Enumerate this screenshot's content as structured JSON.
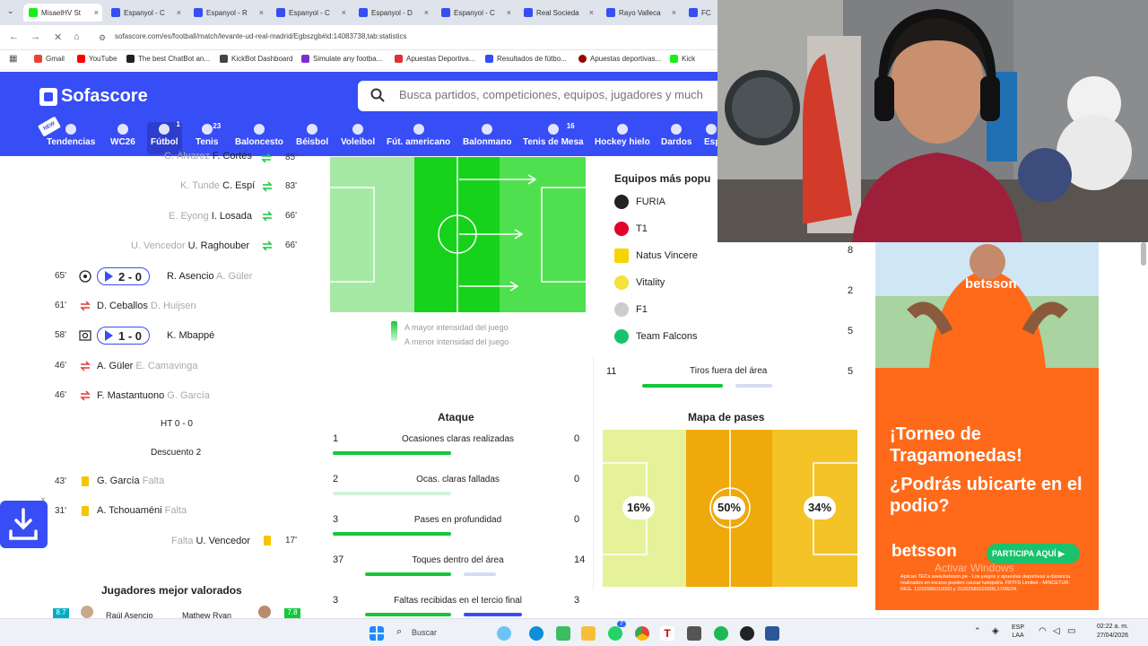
{
  "browser": {
    "tabs": [
      "MisaelHV St",
      "Espanyol - C",
      "Espanyol - R",
      "Espanyol - C",
      "Espanyol - D",
      "Espanyol - C",
      "Real Socieda",
      "Rayo Valleca",
      "FC"
    ],
    "url": "sofascore.com/es/football/match/levante-ud-real-madrid/Egbsz​gb#id:14083738,tab:statistics",
    "bookmarks": [
      "Gmail",
      "YouTube",
      "The best ChatBot an...",
      "KickBot Dashboard",
      "Simulate any footba...",
      "Apuestas Deportiva...",
      "Resultados de fútbo...",
      "Apuestas deportivas...",
      "Kick"
    ]
  },
  "header": {
    "logo": "Sofascore",
    "search_placeholder": "Busca partidos, competiciones, equipos, jugadores y much",
    "sports": [
      {
        "label": "Tendencias",
        "count": ""
      },
      {
        "label": "WC26",
        "count": ""
      },
      {
        "label": "Fútbol",
        "count": "1"
      },
      {
        "label": "Tenis",
        "count": "23"
      },
      {
        "label": "Baloncesto",
        "count": ""
      },
      {
        "label": "Béisbol",
        "count": ""
      },
      {
        "label": "Voleibol",
        "count": ""
      },
      {
        "label": "Fút. americano",
        "count": ""
      },
      {
        "label": "Balonmano",
        "count": ""
      },
      {
        "label": "Tenis de Mesa",
        "count": "16"
      },
      {
        "label": "Hockey hielo",
        "count": ""
      },
      {
        "label": "Dardos",
        "count": ""
      },
      {
        "label": "Esp",
        "count": ""
      }
    ],
    "new_tag": "NEW"
  },
  "incidents": {
    "top_partial": {
      "sub": "C. Álvarez",
      "main": "F. Cortés",
      "minute": "85'"
    },
    "subs_right": [
      {
        "sub": "K. Tunde",
        "main": "C. Espí",
        "minute": "83'"
      },
      {
        "sub": "E. Eyong",
        "main": "I. Losada",
        "minute": "66'"
      },
      {
        "sub": "U. Vencedor",
        "main": "U. Raghouber",
        "minute": "66'"
      }
    ],
    "goal1": {
      "minute": "65'",
      "score": "2 - 0",
      "main": "R. Asencio",
      "sub": "A. Güler"
    },
    "sub_left1": {
      "minute": "61'",
      "main": "D. Ceballos",
      "sub": "D. Huijsen"
    },
    "goal2": {
      "minute": "58'",
      "score": "1 - 0",
      "main": "K. Mbappé"
    },
    "sub_left2": {
      "minute": "46'",
      "main": "A. Güler",
      "sub": "E. Camavinga"
    },
    "sub_left3": {
      "minute": "46'",
      "main": "F. Mastantuono",
      "sub": "G. García"
    },
    "ht": "HT 0 - 0",
    "added": "Descuento 2",
    "card1": {
      "minute": "43'",
      "main": "G. García",
      "sub": "Falta"
    },
    "card2": {
      "minute": "31'",
      "main": "A. Tchouaméni",
      "sub": "Falta"
    },
    "card3": {
      "minute": "17'",
      "main": "U. Vencedor",
      "sub": "Falta"
    }
  },
  "top_players": {
    "title": "Jugadores mejor valorados",
    "left": {
      "rating": "8.7",
      "name": "Raúl Asencio"
    },
    "right": {
      "rating": "7.8",
      "name": "Mathew Ryan"
    }
  },
  "heatmap_legend": {
    "high": "A mayor intensidad del juego",
    "low": "A menor intensidad del juego"
  },
  "popular": {
    "title": "Equipos más popu",
    "teams": [
      "FURIA",
      "T1",
      "Natus Vincere",
      "Vitality",
      "F1",
      "Team Falcons"
    ],
    "values": [
      "8",
      "2",
      "5"
    ]
  },
  "shots_outside": {
    "left": "11",
    "label": "Tiros fuera del área",
    "right": "5",
    "left_share": 0.69
  },
  "attack": {
    "title": "Ataque",
    "rows": [
      {
        "left": "1",
        "label": "Ocasiones claras realizadas",
        "right": "0",
        "left_share": 1.0
      },
      {
        "left": "2",
        "label": "Ocas. claras falladas",
        "right": "0",
        "left_share": 1.0
      },
      {
        "left": "3",
        "label": "Pases en profundidad",
        "right": "0",
        "left_share": 1.0
      },
      {
        "left": "37",
        "label": "Toques dentro del área",
        "right": "14",
        "left_share": 0.73
      },
      {
        "left": "3",
        "label": "Faltas recibidas en el tercio final",
        "right": "3",
        "left_share": 0.5
      }
    ]
  },
  "pass_map": {
    "title": "Mapa de pases",
    "zones": [
      "16%",
      "50%",
      "34%"
    ]
  },
  "ad": {
    "brand": "betsson",
    "headline1": "¡Torneo de Tragamonedas!",
    "headline2": "¿Podrás ubicarte en el podio?",
    "cta": "PARTICIPA AQUÍ",
    "overlay": "Activar Windows",
    "fine": "Aplican TECs www.betsson.pe - Los juegos y apuestas deportivas a distancia realizados en exceso pueden causar ludopatía. FBTFS Limited - MINCETUR: REG. 11002586010000 y 21002586020000,17/06/24."
  },
  "taskbar": {
    "search": "Buscar",
    "lang1": "ESP",
    "lang2": "LAA",
    "time": "02:22 a. m.",
    "date": "27/04/2026",
    "badge1": "7"
  },
  "colors": {
    "brand": "#374df5",
    "green": "#12c83a",
    "orange": "#ff6a1a"
  }
}
